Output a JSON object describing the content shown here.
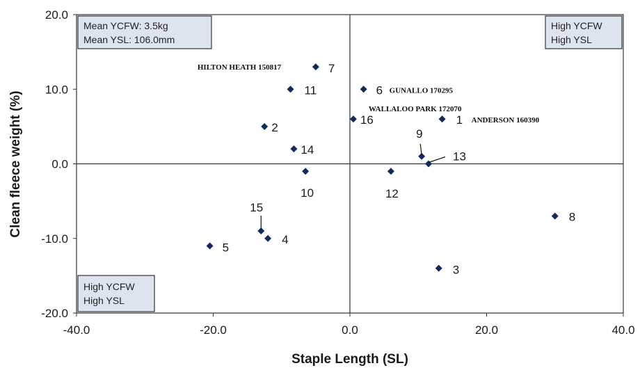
{
  "chart_data": {
    "type": "scatter",
    "title": "",
    "xlabel": "Staple Length (SL)",
    "ylabel": "Clean fleece weight (%)",
    "xlim": [
      -40,
      40
    ],
    "ylim": [
      -20,
      20
    ],
    "x_ticks": [
      "-40.0",
      "-20.0",
      "0.0",
      "20.0",
      "40.0"
    ],
    "y_ticks": [
      "20.0",
      "10.0",
      "0.0",
      "-10.0",
      "-20.0"
    ],
    "grid": false,
    "marker_color": "#0f2a5c",
    "points": [
      {
        "label": "1",
        "x": 13.5,
        "y": 6,
        "name": "ANDERSON 160390"
      },
      {
        "label": "2",
        "x": -12.5,
        "y": 5,
        "name": ""
      },
      {
        "label": "3",
        "x": 13,
        "y": -14,
        "name": ""
      },
      {
        "label": "4",
        "x": -12,
        "y": -10,
        "name": ""
      },
      {
        "label": "5",
        "x": -20.5,
        "y": -11,
        "name": ""
      },
      {
        "label": "6",
        "x": 2,
        "y": 10,
        "name": "GUNALLO 170295"
      },
      {
        "label": "7",
        "x": -5,
        "y": 13,
        "name": "HILTON HEATH 150817"
      },
      {
        "label": "8",
        "x": 30,
        "y": -7,
        "name": ""
      },
      {
        "label": "9",
        "x": 10.5,
        "y": 1,
        "name": ""
      },
      {
        "label": "10",
        "x": -6.5,
        "y": -1,
        "name": ""
      },
      {
        "label": "11",
        "x": -8.7,
        "y": 10,
        "name": ""
      },
      {
        "label": "12",
        "x": 6,
        "y": -1,
        "name": ""
      },
      {
        "label": "13",
        "x": 11.5,
        "y": 0,
        "name": ""
      },
      {
        "label": "14",
        "x": -8.2,
        "y": 2,
        "name": ""
      },
      {
        "label": "15",
        "x": -13,
        "y": -9,
        "name": ""
      },
      {
        "label": "16",
        "x": 0.5,
        "y": 6,
        "name": "WALLALOO PARK 172070"
      }
    ],
    "annotations": {
      "mean_box": [
        "Mean YCFW: 3.5kg",
        "Mean YSL: 106.0mm"
      ],
      "top_right_box": [
        "High YCFW",
        "High YSL"
      ],
      "bottom_left_box": [
        "High YCFW",
        "High YSL"
      ]
    }
  }
}
